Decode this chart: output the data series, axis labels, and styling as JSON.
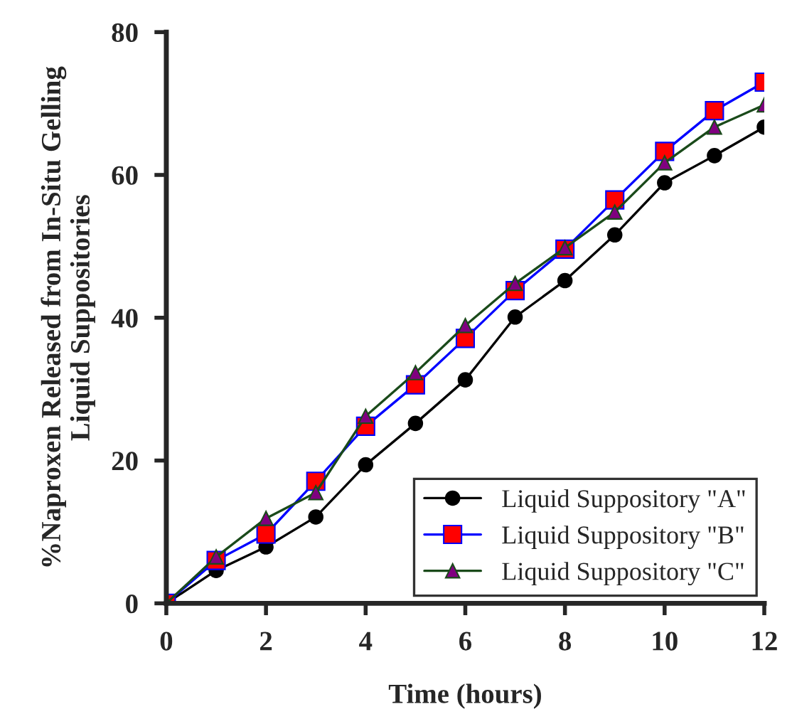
{
  "chart_data": {
    "type": "line",
    "xlabel": "Time (hours)",
    "ylabel": "%Naproxen Released from In-Situ Gelling\nLiquid Suppositories",
    "x": [
      0,
      1,
      2,
      3,
      4,
      5,
      6,
      7,
      8,
      9,
      10,
      11,
      12
    ],
    "series": [
      {
        "name": "Liquid Suppository \"A\"",
        "color": "#000000",
        "marker": "circle",
        "values": [
          0,
          4.6,
          7.9,
          12.1,
          19.4,
          25.2,
          31.3,
          40.1,
          45.2,
          51.6,
          58.9,
          62.7,
          66.7
        ]
      },
      {
        "name": "Liquid Suppository \"B\"",
        "color": "#0000ff",
        "marker": "square",
        "values": [
          0,
          6,
          9.7,
          17.1,
          24.8,
          30.6,
          37.1,
          43.8,
          49.6,
          56.5,
          63.3,
          69,
          73
        ]
      },
      {
        "name": "Liquid Suppository \"C\"",
        "color": "#1a4a1a",
        "marker": "triangle",
        "values": [
          0,
          6.5,
          11.9,
          15.5,
          26.2,
          32.3,
          38.9,
          44.8,
          49.8,
          54.8,
          61.7,
          66.7,
          69.8
        ]
      }
    ],
    "xlim": [
      0,
      12
    ],
    "xticks": [
      0,
      2,
      4,
      6,
      8,
      10,
      12
    ],
    "ylim": [
      0,
      80
    ],
    "yticks": [
      0,
      20,
      40,
      60,
      80
    ],
    "grid": false,
    "legend": "bottom right"
  }
}
